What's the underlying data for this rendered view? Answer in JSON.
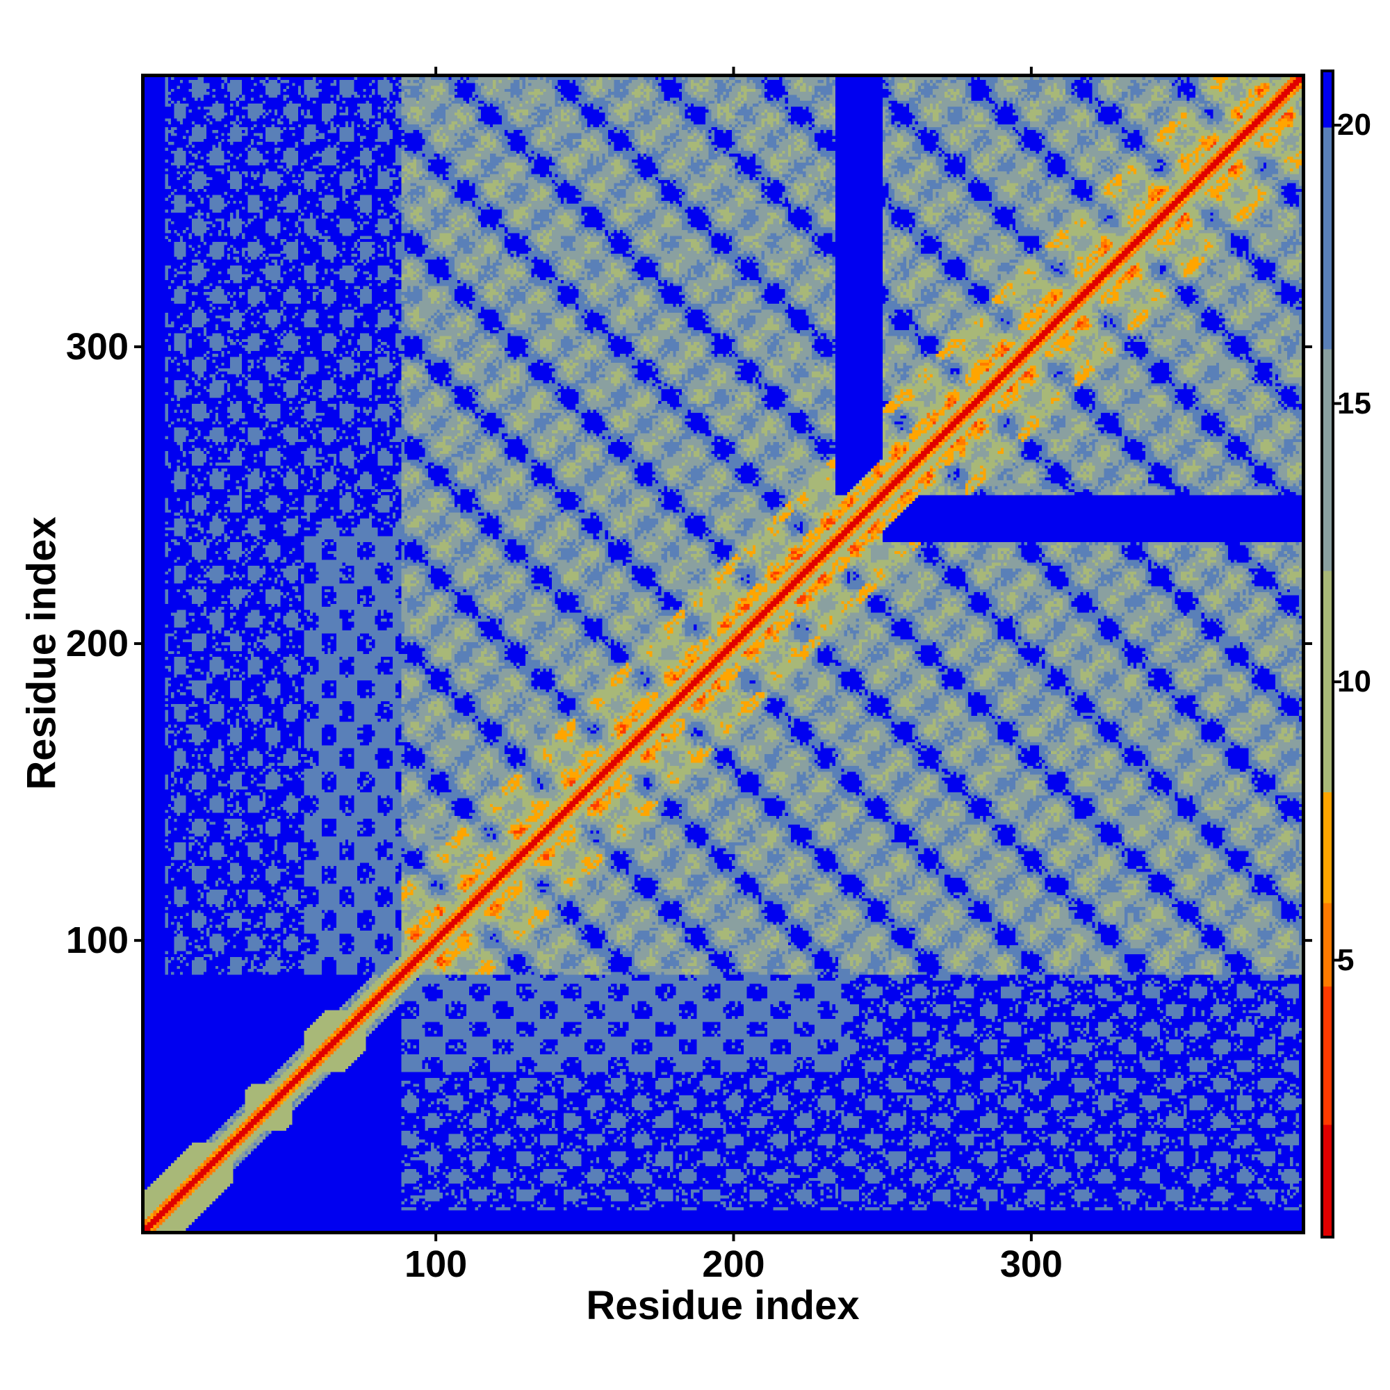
{
  "chart_data": {
    "type": "heatmap",
    "title": "",
    "xlabel": "Residue index",
    "ylabel": "Residue index",
    "n_residues": 392,
    "xlim": [
      1,
      392
    ],
    "ylim": [
      1,
      392
    ],
    "x_ticks": [
      100,
      200,
      300
    ],
    "x_tick_labels": [
      "100",
      "200",
      "300"
    ],
    "y_ticks": [
      100,
      200,
      300
    ],
    "y_tick_labels": [
      "100",
      "200",
      "300"
    ],
    "colorbar": {
      "range": [
        0,
        21
      ],
      "ticks": [
        5,
        10,
        15,
        20
      ],
      "tick_labels": [
        "5",
        "10",
        "15",
        "20"
      ],
      "bands": [
        {
          "from": 0,
          "to": 2,
          "color": "#e00000"
        },
        {
          "from": 2,
          "to": 4.5,
          "color": "#ff3a00"
        },
        {
          "from": 4.5,
          "to": 6,
          "color": "#ff7a00"
        },
        {
          "from": 6,
          "to": 8,
          "color": "#ffa500"
        },
        {
          "from": 8,
          "to": 12,
          "color": "#a8b878"
        },
        {
          "from": 12,
          "to": 16,
          "color": "#8aa0a0"
        },
        {
          "from": 16,
          "to": 20,
          "color": "#5a80b8"
        },
        {
          "from": 20,
          "to": 21,
          "color": "#0000f0"
        }
      ]
    },
    "structure": {
      "compact_domain_range": [
        88,
        392
      ],
      "separating_band": [
        235,
        250
      ],
      "n_terminal_segments": [
        [
          1,
          30
        ],
        [
          35,
          50
        ],
        [
          55,
          75
        ]
      ]
    }
  }
}
